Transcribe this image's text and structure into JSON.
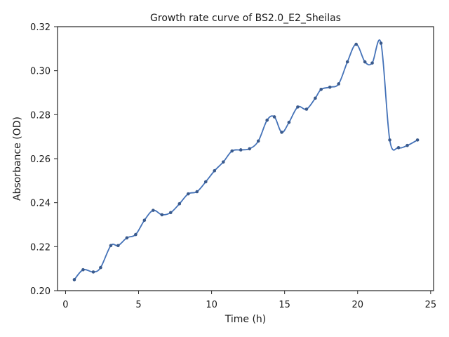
{
  "chart_data": {
    "type": "line",
    "title": "Growth rate curve of BS2.0_E2_Sheilas",
    "xlabel": "Time (h)",
    "ylabel": "Absorbance (OD)",
    "xlim": [
      -0.55,
      25.2
    ],
    "ylim": [
      0.2,
      0.32
    ],
    "xticks": [
      0,
      5,
      10,
      15,
      20,
      25
    ],
    "yticks": [
      0.2,
      0.22,
      0.24,
      0.26,
      0.28,
      0.3,
      0.32
    ],
    "xtick_labels": [
      "0",
      "5",
      "10",
      "15",
      "20",
      "25"
    ],
    "ytick_labels": [
      "0.20",
      "0.22",
      "0.24",
      "0.26",
      "0.28",
      "0.30",
      "0.32"
    ],
    "grid": false,
    "line_color": "#4472b8",
    "marker_color": "#3a5a8c",
    "series": [
      {
        "x": [
          0.6,
          1.2,
          1.9,
          2.4,
          3.1,
          3.6,
          4.2,
          4.8,
          5.4,
          6.0,
          6.6,
          7.2,
          7.8,
          8.4,
          9.0,
          9.6,
          10.2,
          10.8,
          11.4,
          12.0,
          12.6,
          13.2,
          13.8,
          14.3,
          14.8,
          15.3,
          15.9,
          16.5,
          17.1,
          17.5,
          18.1,
          18.7,
          19.3,
          19.9,
          20.5,
          21.0,
          21.6,
          22.2,
          22.8,
          23.4,
          24.1
        ],
        "y": [
          0.205,
          0.2095,
          0.2085,
          0.2105,
          0.2205,
          0.2205,
          0.224,
          0.2255,
          0.232,
          0.2365,
          0.2345,
          0.2355,
          0.2395,
          0.244,
          0.245,
          0.2495,
          0.2545,
          0.2585,
          0.2635,
          0.264,
          0.2645,
          0.268,
          0.2775,
          0.279,
          0.272,
          0.2765,
          0.2835,
          0.2825,
          0.2875,
          0.2915,
          0.2925,
          0.294,
          0.304,
          0.312,
          0.304,
          0.3035,
          0.3125,
          0.2685,
          0.265,
          0.266,
          0.2685
        ]
      }
    ]
  }
}
